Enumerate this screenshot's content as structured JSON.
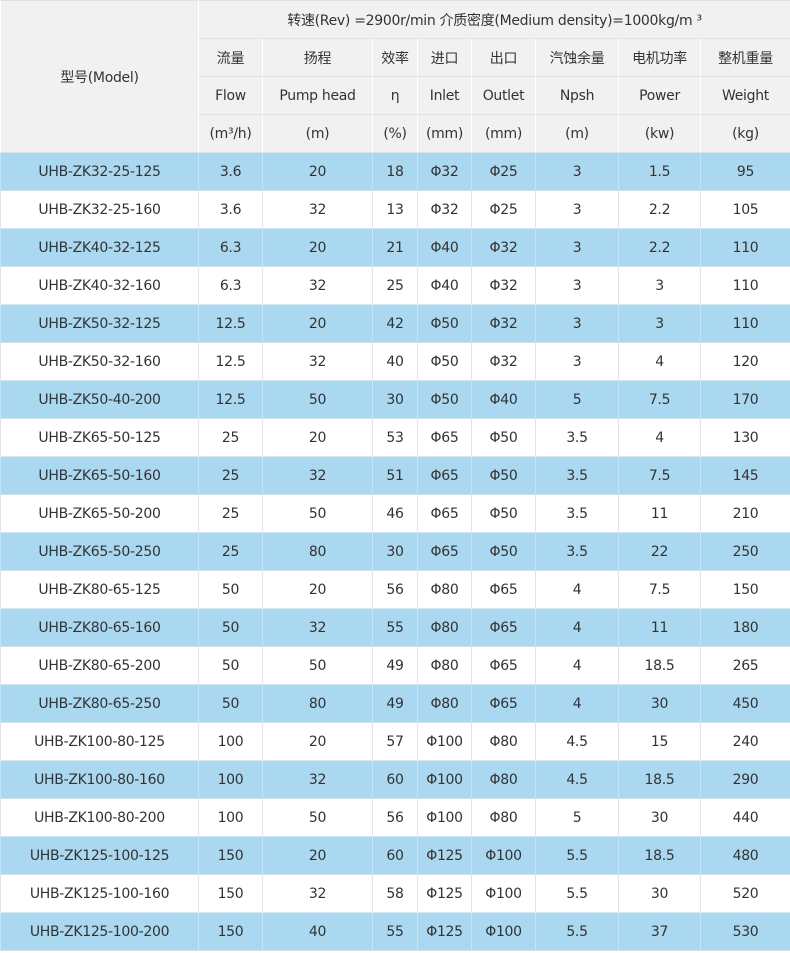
{
  "header": {
    "model_label": "型号(Model)",
    "conditions": "转速(Rev) =2900r/min   介质密度(Medium density)=1000kg/m ³",
    "columns": [
      {
        "cn": "流量",
        "en": "Flow",
        "unit": "(m³/h)"
      },
      {
        "cn": "扬程",
        "en": "Pump head",
        "unit": "(m)"
      },
      {
        "cn": "效率",
        "en": "η",
        "unit": "(%)"
      },
      {
        "cn": "进口",
        "en": "Inlet",
        "unit": "(mm)"
      },
      {
        "cn": "出口",
        "en": "Outlet",
        "unit": "(mm)"
      },
      {
        "cn": "汽蚀余量",
        "en": "Npsh",
        "unit": "(m)"
      },
      {
        "cn": "电机功率",
        "en": "Power",
        "unit": "(kw)"
      },
      {
        "cn": "整机重量",
        "en": "Weight",
        "unit": "(kg)"
      }
    ]
  },
  "colors": {
    "stripe": "#a9d8f0",
    "header_bg": "#f1f1f1"
  },
  "rows": [
    [
      "UHB-ZK32-25-125",
      "3.6",
      "20",
      "18",
      "Φ32",
      "Φ25",
      "3",
      "1.5",
      "95"
    ],
    [
      "UHB-ZK32-25-160",
      "3.6",
      "32",
      "13",
      "Φ32",
      "Φ25",
      "3",
      "2.2",
      "105"
    ],
    [
      "UHB-ZK40-32-125",
      "6.3",
      "20",
      "21",
      "Φ40",
      "Φ32",
      "3",
      "2.2",
      "110"
    ],
    [
      "UHB-ZK40-32-160",
      "6.3",
      "32",
      "25",
      "Φ40",
      "Φ32",
      "3",
      "3",
      "110"
    ],
    [
      "UHB-ZK50-32-125",
      "12.5",
      "20",
      "42",
      "Φ50",
      "Φ32",
      "3",
      "3",
      "110"
    ],
    [
      "UHB-ZK50-32-160",
      "12.5",
      "32",
      "40",
      "Φ50",
      "Φ32",
      "3",
      "4",
      "120"
    ],
    [
      "UHB-ZK50-40-200",
      "12.5",
      "50",
      "30",
      "Φ50",
      "Φ40",
      "5",
      "7.5",
      "170"
    ],
    [
      "UHB-ZK65-50-125",
      "25",
      "20",
      "53",
      "Φ65",
      "Φ50",
      "3.5",
      "4",
      "130"
    ],
    [
      "UHB-ZK65-50-160",
      "25",
      "32",
      "51",
      "Φ65",
      "Φ50",
      "3.5",
      "7.5",
      "145"
    ],
    [
      "UHB-ZK65-50-200",
      "25",
      "50",
      "46",
      "Φ65",
      "Φ50",
      "3.5",
      "11",
      "210"
    ],
    [
      "UHB-ZK65-50-250",
      "25",
      "80",
      "30",
      "Φ65",
      "Φ50",
      "3.5",
      "22",
      "250"
    ],
    [
      "UHB-ZK80-65-125",
      "50",
      "20",
      "56",
      "Φ80",
      "Φ65",
      "4",
      "7.5",
      "150"
    ],
    [
      "UHB-ZK80-65-160",
      "50",
      "32",
      "55",
      "Φ80",
      "Φ65",
      "4",
      "11",
      "180"
    ],
    [
      "UHB-ZK80-65-200",
      "50",
      "50",
      "49",
      "Φ80",
      "Φ65",
      "4",
      "18.5",
      "265"
    ],
    [
      "UHB-ZK80-65-250",
      "50",
      "80",
      "49",
      "Φ80",
      "Φ65",
      "4",
      "30",
      "450"
    ],
    [
      "UHB-ZK100-80-125",
      "100",
      "20",
      "57",
      "Φ100",
      "Φ80",
      "4.5",
      "15",
      "240"
    ],
    [
      "UHB-ZK100-80-160",
      "100",
      "32",
      "60",
      "Φ100",
      "Φ80",
      "4.5",
      "18.5",
      "290"
    ],
    [
      "UHB-ZK100-80-200",
      "100",
      "50",
      "56",
      "Φ100",
      "Φ80",
      "5",
      "30",
      "440"
    ],
    [
      "UHB-ZK125-100-125",
      "150",
      "20",
      "60",
      "Φ125",
      "Φ100",
      "5.5",
      "18.5",
      "480"
    ],
    [
      "UHB-ZK125-100-160",
      "150",
      "32",
      "58",
      "Φ125",
      "Φ100",
      "5.5",
      "30",
      "520"
    ],
    [
      "UHB-ZK125-100-200",
      "150",
      "40",
      "55",
      "Φ125",
      "Φ100",
      "5.5",
      "37",
      "530"
    ]
  ]
}
